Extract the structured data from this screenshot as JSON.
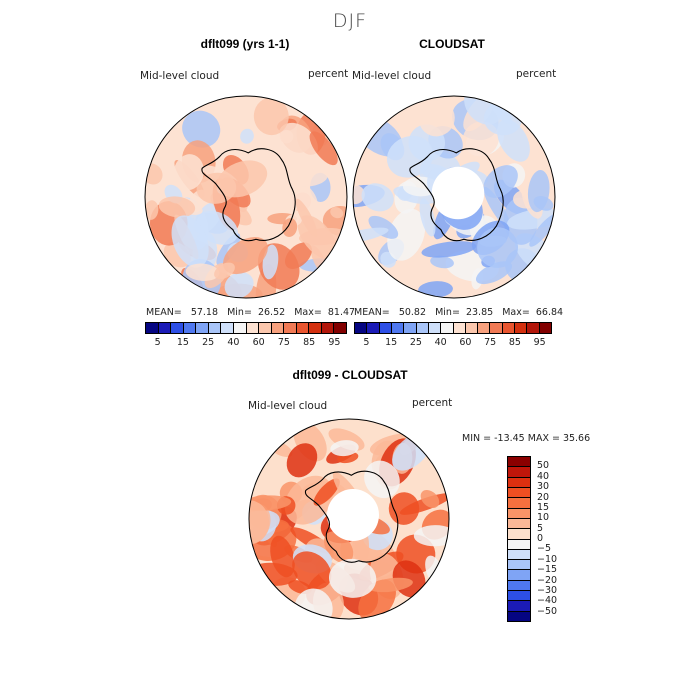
{
  "page": {
    "title": "DJF"
  },
  "chart_data": [
    {
      "type": "heatmap",
      "projection": "south-polar-stereographic",
      "title": "dflt099 (yrs 1-1)",
      "variable_label": "Mid-level cloud",
      "units_label": "percent",
      "stats": {
        "mean_label": "MEAN=",
        "mean": "57.18",
        "min_label": "Min=",
        "min": "26.52",
        "max_label": "Max=",
        "max": "81.47"
      },
      "colorbar_ticks": [
        "5",
        "15",
        "25",
        "40",
        "60",
        "75",
        "85",
        "95"
      ],
      "colors": [
        "#050582",
        "#1b1bb7",
        "#2d4fe6",
        "#4f78f0",
        "#7fa4f5",
        "#a9c5f8",
        "#cfe0fa",
        "#f5f5f5",
        "#fde2d2",
        "#fbc7ad",
        "#f7a17e",
        "#f17a55",
        "#e9552f",
        "#d3300f",
        "#b2160a",
        "#820000"
      ]
    },
    {
      "type": "heatmap",
      "projection": "south-polar-stereographic",
      "title": "CLOUDSAT",
      "variable_label": "Mid-level cloud",
      "units_label": "percent",
      "stats": {
        "mean_label": "MEAN=",
        "mean": "50.82",
        "min_label": "Min=",
        "min": "23.85",
        "max_label": "Max=",
        "max": "66.84"
      },
      "colorbar_ticks": [
        "5",
        "15",
        "25",
        "40",
        "60",
        "75",
        "85",
        "95"
      ],
      "colors": [
        "#050582",
        "#1b1bb7",
        "#2d4fe6",
        "#4f78f0",
        "#7fa4f5",
        "#a9c5f8",
        "#cfe0fa",
        "#f5f5f5",
        "#fde2d2",
        "#fbc7ad",
        "#f7a17e",
        "#f17a55",
        "#e9552f",
        "#d3300f",
        "#b2160a",
        "#820000"
      ]
    },
    {
      "type": "heatmap",
      "projection": "south-polar-stereographic",
      "title": "dflt099 - CLOUDSAT",
      "variable_label": "Mid-level cloud",
      "units_label": "percent",
      "stats_text": "MIN = -13.45 MAX =  35.66",
      "colorbar_ticks": [
        "50",
        "40",
        "30",
        "20",
        "15",
        "10",
        "5",
        "0",
        "−5",
        "−10",
        "−15",
        "−20",
        "−30",
        "−40",
        "−50"
      ],
      "colors": [
        "#8b0000",
        "#c0160a",
        "#de3010",
        "#ef4f22",
        "#f6703f",
        "#f99468",
        "#fbb898",
        "#fde0cc",
        "#f5f5f5",
        "#cfe0fa",
        "#a9c5f8",
        "#7fa4f5",
        "#4f78f0",
        "#2d4fe6",
        "#1b1bb7",
        "#050582"
      ]
    }
  ]
}
